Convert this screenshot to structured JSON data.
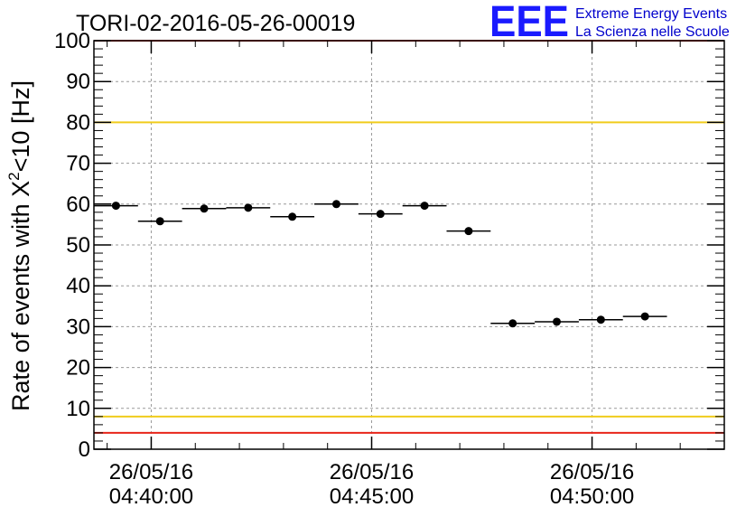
{
  "chart_data": {
    "type": "scatter",
    "title": "TORI-02-2016-05-26-00019",
    "ylabel": {
      "prefix": "Rate of events with ",
      "symbol": "X",
      "superscript": "2",
      "suffix": "<10 [Hz]"
    },
    "xlabel": "",
    "ylim": [
      0,
      100
    ],
    "yticks": [
      0,
      10,
      20,
      30,
      40,
      50,
      60,
      70,
      80,
      90,
      100
    ],
    "xlim": [
      "04:38:42",
      "04:53:00"
    ],
    "xticks": [
      {
        "time": "04:40:00",
        "date": "26/05/16",
        "label": "04:40:00"
      },
      {
        "time": "04:45:00",
        "date": "26/05/16",
        "label": "04:45:00"
      },
      {
        "time": "04:50:00",
        "date": "26/05/16",
        "label": "04:50:00"
      }
    ],
    "grid": true,
    "bin_width_seconds": 60,
    "points": [
      {
        "x": "04:39:12",
        "y": 59.6
      },
      {
        "x": "04:40:12",
        "y": 55.8
      },
      {
        "x": "04:41:12",
        "y": 58.9
      },
      {
        "x": "04:42:12",
        "y": 59.1
      },
      {
        "x": "04:43:12",
        "y": 56.9
      },
      {
        "x": "04:44:12",
        "y": 60.0
      },
      {
        "x": "04:45:12",
        "y": 57.6
      },
      {
        "x": "04:46:12",
        "y": 59.6
      },
      {
        "x": "04:47:12",
        "y": 53.4
      },
      {
        "x": "04:48:12",
        "y": 30.8
      },
      {
        "x": "04:49:12",
        "y": 31.2
      },
      {
        "x": "04:50:12",
        "y": 31.7
      },
      {
        "x": "04:51:12",
        "y": 32.5
      }
    ],
    "reference_lines": [
      {
        "y": 100,
        "color": "#e8251a"
      },
      {
        "y": 80,
        "color": "#f0cc1c"
      },
      {
        "y": 8,
        "color": "#f0cc1c"
      },
      {
        "y": 4,
        "color": "#e8251a"
      }
    ]
  },
  "logo": {
    "mark": "EEE",
    "line1": "Extreme Energy Events",
    "line2": "La Scienza nelle Scuole",
    "color": "#1a1aff"
  }
}
